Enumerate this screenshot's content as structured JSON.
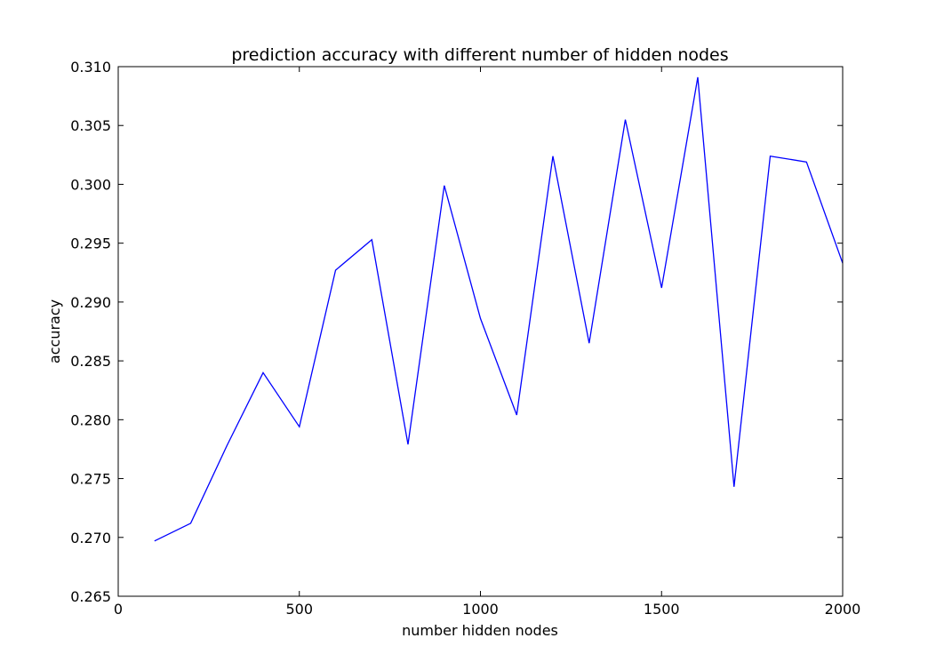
{
  "chart_data": {
    "type": "line",
    "title": "prediction accuracy with different number of hidden nodes",
    "xlabel": "number hidden nodes",
    "ylabel": "accuracy",
    "xlim": [
      0,
      2000
    ],
    "ylim": [
      0.265,
      0.31
    ],
    "xticks": [
      "0",
      "500",
      "1000",
      "1500",
      "2000"
    ],
    "yticks": [
      "0.265",
      "0.270",
      "0.275",
      "0.280",
      "0.285",
      "0.290",
      "0.295",
      "0.300",
      "0.305",
      "0.310"
    ],
    "grid": false,
    "line_color": "#0000ff",
    "series": [
      {
        "x": [
          100,
          200,
          300,
          400,
          500,
          600,
          700,
          800,
          900,
          1000,
          1100,
          1200,
          1300,
          1400,
          1500,
          1600,
          1700,
          1800,
          1900,
          2000
        ],
        "values": [
          0.2697,
          0.2712,
          0.2778,
          0.284,
          0.2794,
          0.2927,
          0.2953,
          0.2779,
          0.2999,
          0.2886,
          0.2804,
          0.3024,
          0.2865,
          0.3055,
          0.2912,
          0.3091,
          0.2743,
          0.3024,
          0.3019,
          0.2933
        ]
      }
    ]
  }
}
